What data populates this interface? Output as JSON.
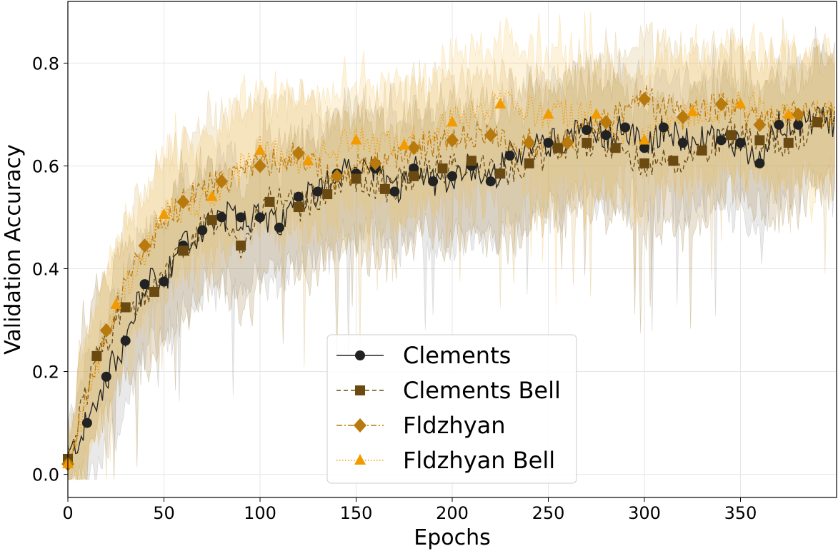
{
  "chart_data": {
    "type": "line",
    "title": "",
    "xlabel": "Epochs",
    "ylabel": "Validation Accuracy",
    "xlim": [
      0,
      400
    ],
    "ylim": [
      -0.045,
      0.92
    ],
    "xticks": [
      0,
      50,
      100,
      150,
      200,
      250,
      300,
      350
    ],
    "xtick_labels": [
      "0",
      "50",
      "100",
      "150",
      "200",
      "250",
      "300",
      "350"
    ],
    "yticks": [
      0.0,
      0.2,
      0.4,
      0.6,
      0.8
    ],
    "ytick_labels": [
      "0.0",
      "0.2",
      "0.4",
      "0.6",
      "0.8"
    ],
    "grid": true,
    "legend_position": "bottom-center",
    "series": [
      {
        "name": "Clements",
        "color": "#222222",
        "line_style": "solid",
        "marker": "circle",
        "band_color": "#9a9a9a",
        "markers": [
          [
            0,
            0.03
          ],
          [
            10,
            0.1
          ],
          [
            20,
            0.19
          ],
          [
            30,
            0.26
          ],
          [
            40,
            0.37
          ],
          [
            50,
            0.375
          ],
          [
            60,
            0.445
          ],
          [
            70,
            0.475
          ],
          [
            80,
            0.5
          ],
          [
            90,
            0.5
          ],
          [
            100,
            0.5
          ],
          [
            110,
            0.48
          ],
          [
            120,
            0.54
          ],
          [
            130,
            0.55
          ],
          [
            140,
            0.585
          ],
          [
            150,
            0.585
          ],
          [
            160,
            0.595
          ],
          [
            170,
            0.55
          ],
          [
            180,
            0.595
          ],
          [
            190,
            0.57
          ],
          [
            200,
            0.58
          ],
          [
            210,
            0.6
          ],
          [
            220,
            0.57
          ],
          [
            230,
            0.62
          ],
          [
            250,
            0.645
          ],
          [
            270,
            0.67
          ],
          [
            280,
            0.66
          ],
          [
            290,
            0.675
          ],
          [
            300,
            0.635
          ],
          [
            310,
            0.675
          ],
          [
            320,
            0.645
          ],
          [
            340,
            0.65
          ],
          [
            350,
            0.645
          ],
          [
            360,
            0.605
          ],
          [
            370,
            0.68
          ],
          [
            380,
            0.68
          ],
          [
            390,
            0.685
          ]
        ]
      },
      {
        "name": "Clements Bell",
        "color": "#6b4a12",
        "line_style": "dashed",
        "marker": "square",
        "band_color": "#a08040",
        "markers": [
          [
            0,
            0.03
          ],
          [
            15,
            0.23
          ],
          [
            30,
            0.325
          ],
          [
            45,
            0.355
          ],
          [
            60,
            0.435
          ],
          [
            75,
            0.495
          ],
          [
            90,
            0.445
          ],
          [
            105,
            0.53
          ],
          [
            120,
            0.52
          ],
          [
            135,
            0.545
          ],
          [
            150,
            0.575
          ],
          [
            165,
            0.555
          ],
          [
            180,
            0.58
          ],
          [
            195,
            0.595
          ],
          [
            210,
            0.61
          ],
          [
            225,
            0.585
          ],
          [
            240,
            0.605
          ],
          [
            255,
            0.635
          ],
          [
            270,
            0.645
          ],
          [
            285,
            0.635
          ],
          [
            300,
            0.605
          ],
          [
            315,
            0.61
          ],
          [
            330,
            0.63
          ],
          [
            345,
            0.66
          ],
          [
            360,
            0.65
          ],
          [
            375,
            0.645
          ],
          [
            390,
            0.685
          ]
        ]
      },
      {
        "name": "Fldzhyan",
        "color": "#b8790d",
        "line_style": "dashdot",
        "marker": "diamond",
        "band_color": "#d8b060",
        "markers": [
          [
            0,
            0.02
          ],
          [
            20,
            0.28
          ],
          [
            40,
            0.445
          ],
          [
            60,
            0.53
          ],
          [
            80,
            0.57
          ],
          [
            100,
            0.6
          ],
          [
            120,
            0.625
          ],
          [
            140,
            0.58
          ],
          [
            160,
            0.605
          ],
          [
            180,
            0.635
          ],
          [
            200,
            0.65
          ],
          [
            220,
            0.66
          ],
          [
            240,
            0.645
          ],
          [
            260,
            0.645
          ],
          [
            280,
            0.685
          ],
          [
            300,
            0.73
          ],
          [
            320,
            0.695
          ],
          [
            340,
            0.72
          ],
          [
            360,
            0.68
          ],
          [
            380,
            0.7
          ]
        ]
      },
      {
        "name": "Fldzhyan Bell",
        "color": "#f29b00",
        "line_style": "dotted",
        "marker": "triangle",
        "band_color": "#f7c25a",
        "markers": [
          [
            0,
            0.02
          ],
          [
            25,
            0.33
          ],
          [
            50,
            0.505
          ],
          [
            75,
            0.54
          ],
          [
            100,
            0.63
          ],
          [
            125,
            0.61
          ],
          [
            150,
            0.65
          ],
          [
            175,
            0.64
          ],
          [
            200,
            0.685
          ],
          [
            225,
            0.72
          ],
          [
            250,
            0.7
          ],
          [
            275,
            0.7
          ],
          [
            300,
            0.65
          ],
          [
            325,
            0.705
          ],
          [
            350,
            0.72
          ],
          [
            375,
            0.7
          ]
        ]
      }
    ]
  }
}
